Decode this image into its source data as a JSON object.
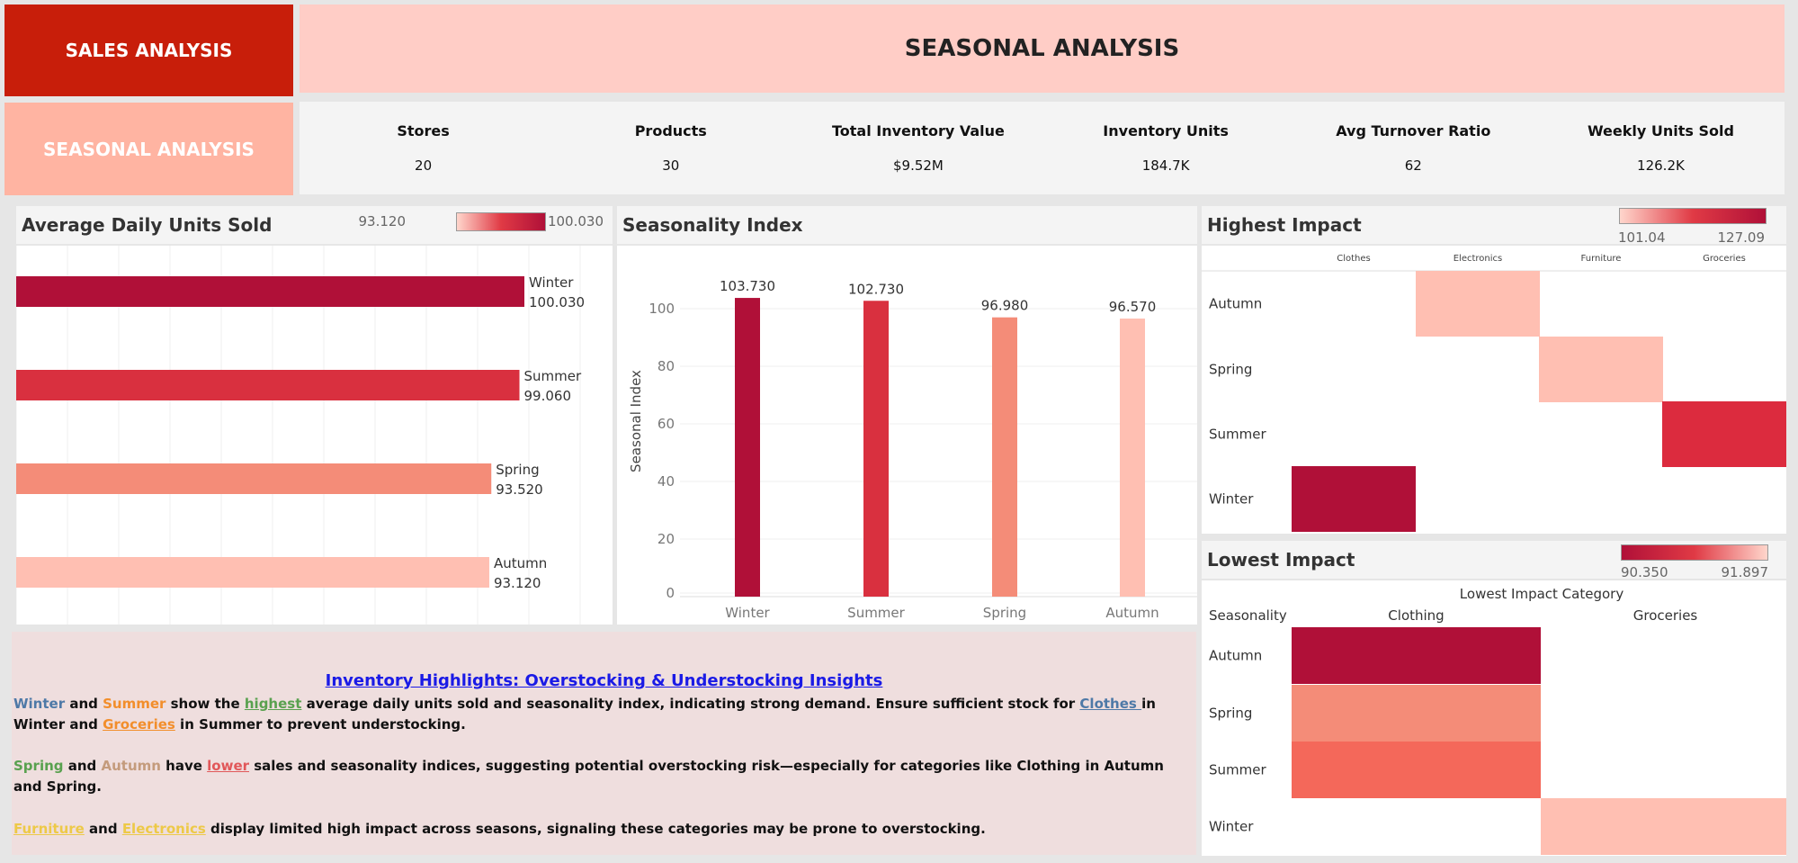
{
  "nav": {
    "main_label": "SALES ANALYSIS",
    "sub_label": "SEASONAL ANALYSIS"
  },
  "header": {
    "title": "SEASONAL ANALYSIS"
  },
  "kpis": [
    {
      "label": "Stores",
      "value": "20"
    },
    {
      "label": "Products",
      "value": "30"
    },
    {
      "label": "Total Inventory Value",
      "value": "$9.52M"
    },
    {
      "label": "Inventory Units",
      "value": "184.7K"
    },
    {
      "label": "Avg Turnover Ratio",
      "value": "62"
    },
    {
      "label": "Weekly Units Sold",
      "value": "126.2K"
    }
  ],
  "colors": {
    "dark": "#b01038",
    "red": "#d9303f",
    "salmon": "#f48c78",
    "light": "#ffbfb2"
  },
  "avg_daily": {
    "title": "Average Daily Units Sold",
    "legend_min": "93.120",
    "legend_max": "100.030"
  },
  "seasonality": {
    "title": "Seasonality Index",
    "ylabel": "Seasonal Index"
  },
  "highest": {
    "title": "Highest Impact",
    "legend_min": "101.04",
    "legend_max": "127.09",
    "columns": [
      "Clothes",
      "Electronics",
      "Furniture",
      "Groceries"
    ],
    "rows": [
      "Autumn",
      "Spring",
      "Summer",
      "Winter"
    ]
  },
  "lowest": {
    "title": "Lowest Impact",
    "legend_min": "90.350",
    "legend_max": "91.897",
    "header_label": "Lowest Impact Category",
    "row_header": "Seasonality",
    "columns": [
      "Clothing",
      "Groceries"
    ],
    "rows": [
      "Autumn",
      "Spring",
      "Summer",
      "Winter"
    ]
  },
  "insights": {
    "title": "Inventory Highlights: Overstocking & Understocking Insights",
    "p1": {
      "w": "Winter",
      "and1": " and ",
      "s": "Summer",
      "t1": " show the ",
      "hi": "highest",
      "t2": " average daily units sold and seasonality index, indicating strong demand. Ensure sufficient stock for ",
      "cl": "Clothes ",
      "t3": "in Winter and ",
      "gr": "Groceries",
      "t4": " in Summer to prevent understocking."
    },
    "p2": {
      "sp": "Spring",
      "and1": " and ",
      "au": "Autumn",
      "t1": " have ",
      "lo": " lower",
      "t2": " sales and seasonality indices, suggesting potential overstocking risk—especially for categories like Clothing in Autumn and Spring."
    },
    "p3": {
      "fu": "Furniture",
      "and1": " and ",
      "el": " Electronics",
      "t1": " display limited high impact across seasons, signaling these categories may be prone to overstocking."
    }
  },
  "chart_data": [
    {
      "type": "bar",
      "orientation": "horizontal",
      "title": "Average Daily Units Sold",
      "categories": [
        "Winter",
        "Summer",
        "Spring",
        "Autumn"
      ],
      "values": [
        100.03,
        99.06,
        93.52,
        93.12
      ],
      "value_labels": [
        "100.030",
        "99.060",
        "93.520",
        "93.120"
      ]
    },
    {
      "type": "bar",
      "title": "Seasonality Index",
      "ylabel": "Seasonal Index",
      "categories": [
        "Winter",
        "Summer",
        "Spring",
        "Autumn"
      ],
      "values": [
        103.73,
        102.73,
        96.98,
        96.57
      ],
      "value_labels": [
        "103.730",
        "102.730",
        "96.980",
        "96.570"
      ],
      "yticks": [
        0,
        20,
        40,
        60,
        80,
        100
      ],
      "ylim": [
        0,
        110
      ]
    },
    {
      "type": "heatmap",
      "title": "Highest Impact",
      "cells": [
        {
          "row": "Autumn",
          "col": "Electronics",
          "level": "light"
        },
        {
          "row": "Spring",
          "col": "Furniture",
          "level": "light"
        },
        {
          "row": "Summer",
          "col": "Groceries",
          "level": "red"
        },
        {
          "row": "Winter",
          "col": "Clothes",
          "level": "dark"
        }
      ]
    },
    {
      "type": "heatmap",
      "title": "Lowest Impact",
      "cells": [
        {
          "row": "Autumn",
          "col": "Clothing",
          "level": "dark"
        },
        {
          "row": "Spring",
          "col": "Clothing",
          "level": "salmon"
        },
        {
          "row": "Summer",
          "col": "Clothing",
          "level": "salmon2"
        },
        {
          "row": "Winter",
          "col": "Groceries",
          "level": "light"
        }
      ]
    }
  ]
}
